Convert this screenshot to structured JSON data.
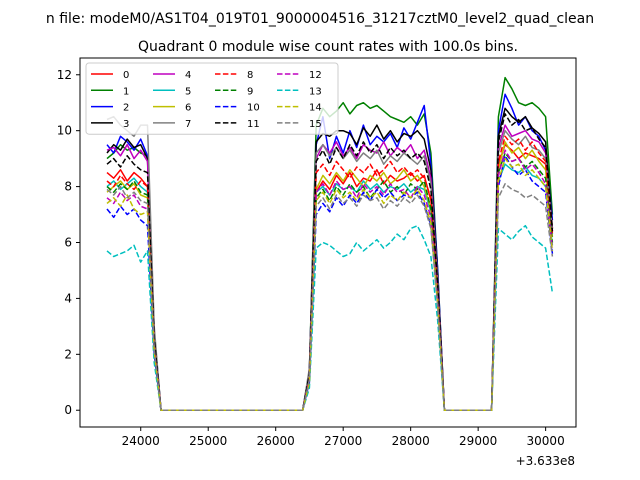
{
  "chart_data": {
    "type": "line",
    "suptitle": "n file: modeM0/AS1T04_019T01_9000004516_31217cztM0_level2_quad_clean",
    "title": "Quadrant 0 module wise count rates with 100.0s bins.",
    "xlabel": "",
    "ylabel": "",
    "x_offset_label": "+3.633e8",
    "xlim": [
      23100,
      30450
    ],
    "ylim": [
      -0.6,
      12.6
    ],
    "xticks": [
      24000,
      25000,
      26000,
      27000,
      28000,
      29000,
      30000
    ],
    "yticks": [
      0,
      2,
      4,
      6,
      8,
      10,
      12
    ],
    "legend_position": "upper-left",
    "legend_columns": 4,
    "x": [
      23500,
      23600,
      23700,
      23800,
      23900,
      24000,
      24100,
      24200,
      24300,
      24400,
      24500,
      24600,
      24700,
      24800,
      24900,
      25000,
      25100,
      25200,
      25300,
      25400,
      25500,
      25600,
      25700,
      25800,
      25900,
      26000,
      26100,
      26200,
      26300,
      26400,
      26500,
      26600,
      26700,
      26800,
      26900,
      27000,
      27100,
      27200,
      27300,
      27400,
      27500,
      27600,
      27700,
      27800,
      27900,
      28000,
      28100,
      28200,
      28300,
      28400,
      28500,
      28600,
      28700,
      28800,
      28900,
      29000,
      29100,
      29200,
      29300,
      29400,
      29500,
      29600,
      29700,
      29800,
      29900,
      30000,
      30100
    ],
    "series": [
      {
        "name": "0",
        "color": "#ff0000",
        "dash": "solid",
        "values": [
          8.5,
          8.3,
          8.6,
          8.2,
          8.5,
          8.3,
          8.0,
          2.5,
          0,
          0,
          0,
          0,
          0,
          0,
          0,
          0,
          0,
          0,
          0,
          0,
          0,
          0,
          0,
          0,
          0,
          0,
          0,
          0,
          0,
          0,
          1.2,
          7.8,
          8.2,
          7.9,
          8.4,
          8.1,
          8.5,
          8.0,
          8.3,
          8.2,
          8.6,
          8.1,
          8.4,
          8.2,
          8.3,
          8.5,
          8.2,
          8.4,
          7.5,
          4.5,
          0,
          0,
          0,
          0,
          0,
          0,
          0,
          0,
          8.8,
          9.5,
          9.3,
          9.0,
          9.2,
          9.1,
          9.0,
          8.8,
          6.5
        ]
      },
      {
        "name": "1",
        "color": "#008000",
        "dash": "solid",
        "values": [
          9.0,
          9.2,
          9.5,
          9.3,
          9.4,
          9.2,
          9.1,
          2.8,
          0,
          0,
          0,
          0,
          0,
          0,
          0,
          0,
          0,
          0,
          0,
          0,
          0,
          0,
          0,
          0,
          0,
          0,
          0,
          0,
          0,
          0,
          1.4,
          10.2,
          10.8,
          10.5,
          10.7,
          11.0,
          10.6,
          10.9,
          11.0,
          10.8,
          10.9,
          10.7,
          10.5,
          10.4,
          10.3,
          10.5,
          10.2,
          10.6,
          9.2,
          5.0,
          0,
          0,
          0,
          0,
          0,
          0,
          0,
          0,
          10.5,
          11.9,
          11.5,
          11.0,
          10.9,
          11.0,
          10.8,
          10.5,
          7.0
        ]
      },
      {
        "name": "2",
        "color": "#0000ff",
        "dash": "solid",
        "values": [
          9.5,
          9.2,
          9.8,
          9.6,
          9.3,
          9.7,
          9.1,
          2.8,
          0,
          0,
          0,
          0,
          0,
          0,
          0,
          0,
          0,
          0,
          0,
          0,
          0,
          0,
          0,
          0,
          0,
          0,
          0,
          0,
          0,
          0,
          1.4,
          9.5,
          10.5,
          9.0,
          9.8,
          9.2,
          10.0,
          9.4,
          10.2,
          9.5,
          9.8,
          9.6,
          9.9,
          9.4,
          10.1,
          9.7,
          10.3,
          10.9,
          8.8,
          5.0,
          0,
          0,
          0,
          0,
          0,
          0,
          0,
          0,
          10.0,
          11.3,
          10.8,
          10.2,
          10.5,
          10.0,
          9.8,
          9.3,
          6.8
        ]
      },
      {
        "name": "3",
        "color": "#000000",
        "dash": "solid",
        "values": [
          9.2,
          9.5,
          9.3,
          9.7,
          9.4,
          9.5,
          9.0,
          2.8,
          0,
          0,
          0,
          0,
          0,
          0,
          0,
          0,
          0,
          0,
          0,
          0,
          0,
          0,
          0,
          0,
          0,
          0,
          0,
          0,
          0,
          0,
          1.4,
          9.6,
          9.9,
          9.8,
          10.0,
          10.0,
          9.9,
          9.5,
          10.1,
          9.8,
          10.2,
          9.7,
          10.0,
          9.6,
          9.9,
          9.8,
          10.0,
          9.7,
          8.6,
          4.8,
          0,
          0,
          0,
          0,
          0,
          0,
          0,
          0,
          9.8,
          10.8,
          10.5,
          10.3,
          10.5,
          10.1,
          9.9,
          9.6,
          6.5
        ]
      },
      {
        "name": "4",
        "color": "#bf00bf",
        "dash": "solid",
        "values": [
          9.3,
          9.4,
          9.1,
          9.5,
          9.0,
          9.3,
          8.9,
          2.7,
          0,
          0,
          0,
          0,
          0,
          0,
          0,
          0,
          0,
          0,
          0,
          0,
          0,
          0,
          0,
          0,
          0,
          0,
          0,
          0,
          0,
          0,
          1.3,
          9.0,
          9.5,
          9.2,
          9.6,
          9.1,
          9.4,
          9.0,
          9.5,
          9.3,
          9.2,
          9.6,
          9.1,
          9.4,
          9.2,
          9.5,
          9.0,
          9.3,
          8.3,
          4.6,
          0,
          0,
          0,
          0,
          0,
          0,
          0,
          0,
          9.4,
          10.2,
          9.8,
          9.9,
          10.0,
          9.7,
          9.6,
          9.2,
          6.4
        ]
      },
      {
        "name": "5",
        "color": "#00bfbf",
        "dash": "solid",
        "values": [
          8.0,
          8.2,
          7.9,
          8.1,
          8.3,
          8.0,
          7.8,
          2.4,
          0,
          0,
          0,
          0,
          0,
          0,
          0,
          0,
          0,
          0,
          0,
          0,
          0,
          0,
          0,
          0,
          0,
          0,
          0,
          0,
          0,
          0,
          1.2,
          7.8,
          8.0,
          7.7,
          8.1,
          7.9,
          8.0,
          7.8,
          8.2,
          7.9,
          8.1,
          7.8,
          8.0,
          7.9,
          8.1,
          7.8,
          8.0,
          7.9,
          7.1,
          4.0,
          0,
          0,
          0,
          0,
          0,
          0,
          0,
          0,
          8.2,
          8.8,
          8.6,
          8.5,
          8.7,
          8.4,
          8.3,
          8.0,
          5.9
        ]
      },
      {
        "name": "6",
        "color": "#bfbf00",
        "dash": "solid",
        "values": [
          7.8,
          8.0,
          8.2,
          7.9,
          8.1,
          7.7,
          7.6,
          2.3,
          0,
          0,
          0,
          0,
          0,
          0,
          0,
          0,
          0,
          0,
          0,
          0,
          0,
          0,
          0,
          0,
          0,
          0,
          0,
          0,
          0,
          0,
          1.1,
          7.9,
          8.4,
          8.1,
          8.5,
          8.2,
          8.6,
          8.3,
          8.0,
          8.4,
          8.2,
          8.5,
          8.1,
          8.3,
          8.6,
          8.2,
          8.4,
          8.0,
          7.2,
          4.2,
          0,
          0,
          0,
          0,
          0,
          0,
          0,
          0,
          8.6,
          9.6,
          9.2,
          9.4,
          9.0,
          9.3,
          8.9,
          8.6,
          6.2
        ]
      },
      {
        "name": "7",
        "color": "#808080",
        "dash": "solid",
        "values": [
          10.4,
          10.5,
          10.2,
          10.0,
          9.8,
          10.2,
          10.2,
          3.0,
          0,
          0,
          0,
          0,
          0,
          0,
          0,
          0,
          0,
          0,
          0,
          0,
          0,
          0,
          0,
          0,
          0,
          0,
          0,
          0,
          0,
          0,
          1.5,
          9.2,
          9.5,
          9.1,
          9.4,
          9.0,
          9.3,
          8.9,
          9.2,
          9.0,
          9.3,
          8.8,
          9.1,
          8.9,
          9.2,
          9.0,
          8.8,
          9.1,
          8.1,
          4.6,
          0,
          0,
          0,
          0,
          0,
          0,
          0,
          0,
          9.2,
          10.0,
          9.7,
          9.5,
          9.8,
          9.4,
          9.3,
          9.0,
          6.3
        ]
      },
      {
        "name": "8",
        "color": "#ff0000",
        "dash": "dashed",
        "values": [
          8.2,
          8.0,
          8.4,
          8.1,
          7.9,
          8.2,
          8.0,
          2.4,
          0,
          0,
          0,
          0,
          0,
          0,
          0,
          0,
          0,
          0,
          0,
          0,
          0,
          0,
          0,
          0,
          0,
          0,
          0,
          0,
          0,
          0,
          1.2,
          8.5,
          8.8,
          8.4,
          8.9,
          8.6,
          8.3,
          8.7,
          8.5,
          8.8,
          8.4,
          8.6,
          8.9,
          8.5,
          8.7,
          8.4,
          8.6,
          8.3,
          7.6,
          4.3,
          0,
          0,
          0,
          0,
          0,
          0,
          0,
          0,
          8.9,
          9.8,
          9.5,
          9.7,
          9.3,
          9.6,
          9.2,
          8.9,
          6.3
        ]
      },
      {
        "name": "9",
        "color": "#008000",
        "dash": "dashed",
        "values": [
          8.0,
          7.8,
          8.1,
          7.9,
          8.2,
          7.8,
          7.7,
          2.3,
          0,
          0,
          0,
          0,
          0,
          0,
          0,
          0,
          0,
          0,
          0,
          0,
          0,
          0,
          0,
          0,
          0,
          0,
          0,
          0,
          0,
          0,
          1.2,
          7.6,
          7.9,
          7.5,
          8.0,
          7.7,
          8.1,
          7.8,
          8.0,
          7.6,
          7.9,
          8.2,
          7.8,
          8.0,
          7.7,
          8.1,
          7.9,
          8.2,
          7.2,
          4.1,
          0,
          0,
          0,
          0,
          0,
          0,
          0,
          0,
          8.5,
          9.2,
          8.9,
          9.0,
          8.7,
          8.9,
          8.6,
          8.3,
          6.0
        ]
      },
      {
        "name": "10",
        "color": "#0000ff",
        "dash": "dashed",
        "values": [
          7.2,
          6.9,
          7.3,
          7.0,
          7.2,
          6.8,
          6.6,
          2.0,
          0,
          0,
          0,
          0,
          0,
          0,
          0,
          0,
          0,
          0,
          0,
          0,
          0,
          0,
          0,
          0,
          0,
          0,
          0,
          0,
          0,
          0,
          1.0,
          7.0,
          7.4,
          7.1,
          7.6,
          7.3,
          7.7,
          7.4,
          7.8,
          7.5,
          7.9,
          7.6,
          7.8,
          7.5,
          7.7,
          7.6,
          7.8,
          7.4,
          6.6,
          3.8,
          0,
          0,
          0,
          0,
          0,
          0,
          0,
          0,
          8.0,
          9.1,
          8.7,
          8.4,
          8.6,
          8.2,
          8.0,
          7.8,
          5.6
        ]
      },
      {
        "name": "11",
        "color": "#000000",
        "dash": "dashed",
        "values": [
          8.8,
          9.0,
          8.7,
          9.1,
          8.8,
          8.6,
          8.5,
          2.6,
          0,
          0,
          0,
          0,
          0,
          0,
          0,
          0,
          0,
          0,
          0,
          0,
          0,
          0,
          0,
          0,
          0,
          0,
          0,
          0,
          0,
          0,
          1.3,
          8.9,
          9.3,
          8.8,
          9.4,
          9.0,
          9.5,
          9.1,
          9.6,
          9.2,
          9.5,
          9.0,
          9.4,
          9.1,
          9.3,
          9.0,
          9.2,
          8.9,
          7.9,
          4.5,
          0,
          0,
          0,
          0,
          0,
          0,
          0,
          0,
          9.6,
          10.6,
          10.2,
          10.4,
          10.0,
          10.1,
          9.7,
          9.4,
          6.4
        ]
      },
      {
        "name": "12",
        "color": "#bf00bf",
        "dash": "dashed",
        "values": [
          7.6,
          7.4,
          7.8,
          7.5,
          7.7,
          7.3,
          7.2,
          2.2,
          0,
          0,
          0,
          0,
          0,
          0,
          0,
          0,
          0,
          0,
          0,
          0,
          0,
          0,
          0,
          0,
          0,
          0,
          0,
          0,
          0,
          0,
          1.1,
          7.8,
          8.1,
          7.7,
          8.2,
          7.9,
          8.0,
          7.6,
          8.1,
          7.8,
          8.0,
          7.7,
          8.1,
          7.8,
          7.9,
          7.6,
          8.0,
          7.7,
          6.9,
          3.9,
          0,
          0,
          0,
          0,
          0,
          0,
          0,
          0,
          8.4,
          9.3,
          8.9,
          9.0,
          8.6,
          8.8,
          8.5,
          8.1,
          5.8
        ]
      },
      {
        "name": "13",
        "color": "#00bfbf",
        "dash": "dashed",
        "values": [
          5.7,
          5.5,
          5.6,
          5.7,
          5.9,
          5.3,
          5.7,
          1.7,
          0,
          0,
          0,
          0,
          0,
          0,
          0,
          0,
          0,
          0,
          0,
          0,
          0,
          0,
          0,
          0,
          0,
          0,
          0,
          0,
          0,
          0,
          0.8,
          5.8,
          6.0,
          5.9,
          5.7,
          5.5,
          5.6,
          6.0,
          5.7,
          5.9,
          6.1,
          5.8,
          6.0,
          6.3,
          6.1,
          6.5,
          6.6,
          6.1,
          5.5,
          3.2,
          0,
          0,
          0,
          0,
          0,
          0,
          0,
          0,
          6.5,
          6.3,
          6.1,
          6.4,
          6.6,
          6.2,
          6.0,
          5.8,
          4.2
        ]
      },
      {
        "name": "14",
        "color": "#bfbf00",
        "dash": "dashed",
        "values": [
          7.4,
          7.6,
          7.3,
          7.7,
          7.2,
          7.0,
          7.1,
          2.1,
          0,
          0,
          0,
          0,
          0,
          0,
          0,
          0,
          0,
          0,
          0,
          0,
          0,
          0,
          0,
          0,
          0,
          0,
          0,
          0,
          0,
          0,
          1.0,
          7.5,
          7.8,
          7.4,
          7.9,
          7.6,
          7.8,
          7.5,
          7.9,
          7.6,
          7.8,
          7.4,
          7.7,
          7.5,
          7.8,
          7.6,
          7.9,
          7.5,
          6.7,
          3.8,
          0,
          0,
          0,
          0,
          0,
          0,
          0,
          0,
          8.2,
          9.0,
          8.7,
          8.8,
          8.4,
          8.6,
          8.3,
          8.0,
          5.7
        ]
      },
      {
        "name": "15",
        "color": "#808080",
        "dash": "dashed",
        "values": [
          7.9,
          7.7,
          8.0,
          7.6,
          7.8,
          7.5,
          7.4,
          2.2,
          0,
          0,
          0,
          0,
          0,
          0,
          0,
          0,
          0,
          0,
          0,
          0,
          0,
          0,
          0,
          0,
          0,
          0,
          0,
          0,
          0,
          0,
          1.1,
          7.3,
          7.6,
          7.2,
          7.7,
          7.4,
          7.6,
          7.3,
          7.7,
          7.5,
          7.6,
          7.2,
          7.5,
          7.3,
          7.6,
          7.4,
          7.7,
          7.3,
          6.5,
          3.7,
          0,
          0,
          0,
          0,
          0,
          0,
          0,
          0,
          7.6,
          8.1,
          7.9,
          7.8,
          7.6,
          7.7,
          7.5,
          7.3,
          5.5
        ]
      }
    ]
  }
}
